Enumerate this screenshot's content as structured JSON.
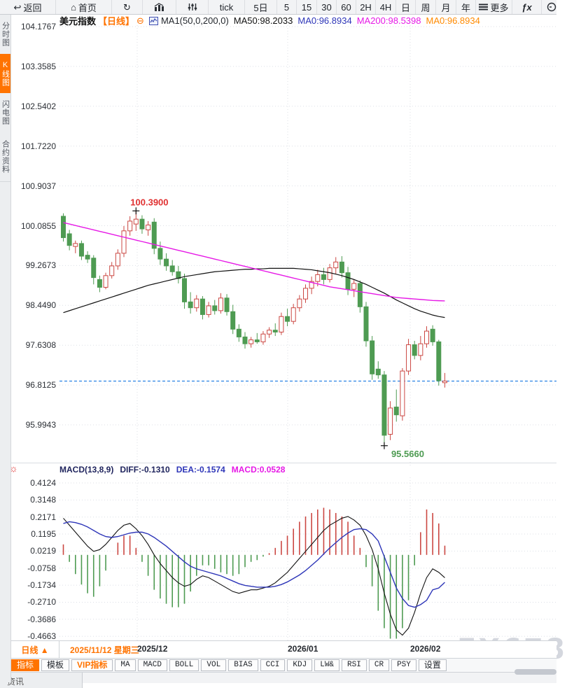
{
  "top_toolbar": {
    "items": [
      {
        "id": "back",
        "label": "返回",
        "icon": "back-arrow-icon",
        "glyph": "↩",
        "w": 80
      },
      {
        "id": "home",
        "label": "首页",
        "icon": "home-icon",
        "glyph": "⌂",
        "w": 80
      },
      {
        "id": "refresh",
        "label": "",
        "icon": "refresh-icon",
        "glyph": "↻",
        "w": 44
      },
      {
        "id": "kline",
        "label": "",
        "icon": "kline-chart-icon",
        "glyph": "svg-kline",
        "w": 48
      },
      {
        "id": "indicator",
        "label": "",
        "icon": "sliders-icon",
        "glyph": "svg-sliders",
        "w": 46
      },
      {
        "id": "tick",
        "label": "tick",
        "w": 52
      },
      {
        "id": "5d",
        "label": "5日",
        "w": 46
      },
      {
        "id": "m5",
        "label": "5",
        "w": 28
      },
      {
        "id": "m15",
        "label": "15",
        "w": 29
      },
      {
        "id": "m30",
        "label": "30",
        "w": 28
      },
      {
        "id": "m60",
        "label": "60",
        "w": 28
      },
      {
        "id": "h2",
        "label": "2H",
        "w": 28
      },
      {
        "id": "h4",
        "label": "4H",
        "w": 29
      },
      {
        "id": "day",
        "label": "日",
        "w": 28
      },
      {
        "id": "week",
        "label": "周",
        "w": 29
      },
      {
        "id": "month",
        "label": "月",
        "w": 29
      },
      {
        "id": "year",
        "label": "年",
        "w": 28
      },
      {
        "id": "more",
        "label": "更多",
        "icon": "menu-icon",
        "glyph": "svg-menu",
        "w": 52
      },
      {
        "id": "fx",
        "label": "ƒx",
        "fx": true,
        "w": 42
      },
      {
        "id": "clock",
        "label": "",
        "icon": "clock-icon",
        "glyph": "svg-circle",
        "w": 24
      }
    ]
  },
  "sidebar": {
    "tabs": [
      {
        "label": "分时图",
        "active": false,
        "h": 56
      },
      {
        "label": "K线图",
        "active": true,
        "h": 56
      },
      {
        "label": "闪电图",
        "active": false,
        "h": 56
      },
      {
        "label": "合约资料",
        "active": false,
        "h": 70
      }
    ]
  },
  "chart_header": {
    "symbol": "美元指数",
    "period": "【日线】",
    "collapse_icon": "⊖",
    "ma_settings": "MA1(50,0,200,0)",
    "ma50": "MA50:98.2033",
    "ma0_blue": "MA0:96.8934",
    "ma200": "MA200:98.5398",
    "ma0_orange": "MA0:96.8934"
  },
  "macd_header": {
    "title": "MACD(13,8,9)",
    "diff": "DIFF:-0.1310",
    "dea": "DEA:-0.1574",
    "macd": "MACD:0.0528"
  },
  "x_axis": {
    "period_button": "日线 ▲",
    "crosshair_date": {
      "text": "2025/11/12 星期三",
      "x": 84
    },
    "labels": [
      {
        "text": "2025/12",
        "x": 180
      },
      {
        "text": "2026/01",
        "x": 395
      },
      {
        "text": "2026/02",
        "x": 570
      }
    ]
  },
  "bottom_toolbar": {
    "items": [
      {
        "label": "指标",
        "active": true
      },
      {
        "label": "模板"
      },
      {
        "label": "VIP指标",
        "vip": true
      },
      {
        "label": "MA",
        "mono": true
      },
      {
        "label": "MACD",
        "mono": true
      },
      {
        "label": "BOLL",
        "mono": true
      },
      {
        "label": "VOL",
        "mono": true
      },
      {
        "label": "BIAS",
        "mono": true
      },
      {
        "label": "CCI",
        "mono": true
      },
      {
        "label": "KDJ",
        "mono": true
      },
      {
        "label": "LW&",
        "mono": true
      },
      {
        "label": "RSI",
        "mono": true
      },
      {
        "label": "CR",
        "mono": true
      },
      {
        "label": "PSY",
        "mono": true
      },
      {
        "label": "设置"
      }
    ]
  },
  "partial_tab": "资讯",
  "watermark": "FX678",
  "colors": {
    "up_red": "#cb4742",
    "down_green": "#4e9b52",
    "ma50_black": "#111111",
    "ma200_magenta": "#e619e6",
    "dea_blue": "#2d35b8",
    "diff_black": "#111111",
    "price_line_blue": "#2a82e4",
    "grid": "#dcdfe6",
    "accent_orange": "#ff7300",
    "annotation_red": "#e03131",
    "annotation_green": "#4e9b52"
  },
  "chart_data": [
    {
      "type": "candlestick",
      "title": "美元指数 日线",
      "y_ticks": [
        "104.1767",
        "103.3585",
        "102.5402",
        "101.7220",
        "100.9037",
        "100.0855",
        "99.2673",
        "98.4490",
        "97.6308",
        "96.8125",
        "95.9943"
      ],
      "y_top_value": 104.1767,
      "y_tick_step": 0.81825,
      "price_line_value": 96.8934,
      "month_gridlines_x": [
        111,
        326,
        501
      ],
      "annotations": {
        "high": {
          "index": 12,
          "price": 100.39,
          "label": "100.3900"
        },
        "low": {
          "index": 53,
          "price": 95.566,
          "label": "95.5660"
        }
      },
      "candles": [
        [
          100.28,
          100.34,
          99.76,
          99.84
        ],
        [
          99.92,
          100.0,
          99.58,
          99.68
        ],
        [
          99.66,
          99.78,
          99.52,
          99.72
        ],
        [
          99.72,
          99.78,
          99.38,
          99.46
        ],
        [
          99.48,
          99.56,
          99.32,
          99.4
        ],
        [
          99.42,
          99.48,
          98.88,
          99.02
        ],
        [
          98.98,
          99.06,
          98.72,
          98.82
        ],
        [
          98.82,
          99.12,
          98.78,
          99.06
        ],
        [
          99.06,
          99.34,
          99.0,
          99.26
        ],
        [
          99.26,
          99.6,
          99.18,
          99.52
        ],
        [
          99.52,
          100.08,
          99.44,
          99.98
        ],
        [
          99.98,
          100.28,
          99.88,
          100.18
        ],
        [
          100.12,
          100.39,
          99.98,
          100.22
        ],
        [
          100.22,
          100.3,
          99.92,
          100.02
        ],
        [
          100.0,
          100.18,
          99.88,
          100.1
        ],
        [
          100.16,
          100.24,
          99.5,
          99.62
        ],
        [
          99.62,
          99.76,
          99.28,
          99.4
        ],
        [
          99.4,
          99.52,
          99.16,
          99.26
        ],
        [
          99.26,
          99.38,
          99.06,
          99.14
        ],
        [
          99.14,
          99.26,
          98.9,
          99.0
        ],
        [
          99.0,
          99.1,
          98.38,
          98.52
        ],
        [
          98.52,
          98.72,
          98.28,
          98.4
        ],
        [
          98.4,
          98.66,
          98.32,
          98.58
        ],
        [
          98.58,
          98.64,
          98.16,
          98.26
        ],
        [
          98.26,
          98.52,
          98.2,
          98.44
        ],
        [
          98.44,
          98.56,
          98.26,
          98.34
        ],
        [
          98.34,
          98.7,
          98.28,
          98.6
        ],
        [
          98.6,
          98.68,
          98.24,
          98.32
        ],
        [
          98.32,
          98.46,
          97.86,
          97.96
        ],
        [
          97.96,
          98.06,
          97.7,
          97.8
        ],
        [
          97.8,
          97.9,
          97.56,
          97.66
        ],
        [
          97.66,
          97.8,
          97.58,
          97.74
        ],
        [
          97.74,
          97.88,
          97.66,
          97.7
        ],
        [
          97.7,
          97.92,
          97.64,
          97.86
        ],
        [
          97.86,
          98.0,
          97.78,
          97.94
        ],
        [
          97.94,
          98.08,
          97.82,
          97.9
        ],
        [
          97.9,
          98.3,
          97.84,
          98.22
        ],
        [
          98.22,
          98.38,
          98.02,
          98.12
        ],
        [
          98.12,
          98.48,
          98.06,
          98.4
        ],
        [
          98.4,
          98.66,
          98.32,
          98.58
        ],
        [
          98.58,
          98.88,
          98.5,
          98.8
        ],
        [
          98.8,
          99.04,
          98.68,
          98.94
        ],
        [
          98.94,
          99.18,
          98.84,
          99.08
        ],
        [
          99.08,
          99.22,
          98.88,
          98.98
        ],
        [
          98.98,
          99.3,
          98.92,
          99.22
        ],
        [
          99.22,
          99.44,
          99.1,
          99.34
        ],
        [
          99.34,
          99.46,
          99.02,
          99.12
        ],
        [
          99.12,
          99.24,
          98.66,
          98.78
        ],
        [
          98.78,
          98.98,
          98.62,
          98.9
        ],
        [
          98.9,
          98.96,
          98.3,
          98.42
        ],
        [
          98.42,
          98.52,
          97.6,
          97.72
        ],
        [
          97.72,
          97.82,
          96.92,
          97.04
        ],
        [
          97.14,
          97.3,
          96.94,
          97.02
        ],
        [
          97.02,
          97.1,
          95.566,
          95.78
        ],
        [
          95.8,
          96.48,
          95.68,
          96.34
        ],
        [
          96.36,
          96.72,
          96.06,
          96.2
        ],
        [
          96.18,
          97.16,
          96.08,
          97.1
        ],
        [
          97.1,
          97.76,
          97.02,
          97.64
        ],
        [
          97.64,
          97.72,
          97.34,
          97.42
        ],
        [
          97.42,
          97.82,
          97.32,
          97.66
        ],
        [
          97.66,
          98.02,
          97.58,
          97.92
        ],
        [
          97.96,
          98.04,
          97.62,
          97.7
        ],
        [
          97.7,
          97.74,
          96.8,
          96.9
        ],
        [
          96.86,
          97.06,
          96.76,
          96.8934
        ]
      ],
      "ma50": [
        98.3,
        98.34,
        98.38,
        98.42,
        98.46,
        98.5,
        98.54,
        98.58,
        98.62,
        98.66,
        98.7,
        98.74,
        98.78,
        98.82,
        98.86,
        98.89,
        98.92,
        98.95,
        98.98,
        99.01,
        99.04,
        99.06,
        99.08,
        99.1,
        99.12,
        99.14,
        99.15,
        99.16,
        99.17,
        99.18,
        99.19,
        99.19,
        99.2,
        99.2,
        99.21,
        99.21,
        99.21,
        99.21,
        99.21,
        99.2,
        99.19,
        99.18,
        99.16,
        99.14,
        99.12,
        99.09,
        99.06,
        99.02,
        98.98,
        98.93,
        98.88,
        98.82,
        98.76,
        98.7,
        98.63,
        98.56,
        98.5,
        98.44,
        98.38,
        98.33,
        98.29,
        98.25,
        98.22,
        98.2
      ],
      "ma200": [
        100.15,
        100.12,
        100.09,
        100.06,
        100.03,
        100.0,
        99.97,
        99.94,
        99.91,
        99.88,
        99.85,
        99.82,
        99.79,
        99.76,
        99.73,
        99.7,
        99.67,
        99.64,
        99.61,
        99.58,
        99.55,
        99.52,
        99.49,
        99.46,
        99.43,
        99.4,
        99.37,
        99.34,
        99.31,
        99.28,
        99.25,
        99.22,
        99.19,
        99.16,
        99.13,
        99.1,
        99.07,
        99.04,
        99.01,
        98.98,
        98.95,
        98.92,
        98.89,
        98.86,
        98.83,
        98.81,
        98.79,
        98.77,
        98.75,
        98.73,
        98.71,
        98.69,
        98.67,
        98.65,
        98.63,
        98.61,
        98.6,
        98.59,
        98.58,
        98.57,
        98.56,
        98.55,
        98.545,
        98.54
      ]
    },
    {
      "type": "macd",
      "params": "MACD(13,8,9)",
      "y_ticks": [
        "0.4124",
        "0.3148",
        "0.2171",
        "0.1195",
        "0.0219",
        "-0.0758",
        "-0.1734",
        "-0.2710",
        "-0.3686",
        "-0.4663"
      ],
      "y_top_value": 0.4124,
      "y_tick_step": 0.09765,
      "month_gridlines_x": [
        111,
        326,
        501
      ],
      "diff": [
        0.21,
        0.17,
        0.13,
        0.09,
        0.05,
        0.02,
        0.03,
        0.06,
        0.1,
        0.14,
        0.17,
        0.18,
        0.15,
        0.11,
        0.06,
        0.0,
        -0.05,
        -0.09,
        -0.13,
        -0.16,
        -0.18,
        -0.17,
        -0.14,
        -0.12,
        -0.13,
        -0.15,
        -0.17,
        -0.19,
        -0.21,
        -0.22,
        -0.21,
        -0.2,
        -0.2,
        -0.19,
        -0.18,
        -0.16,
        -0.13,
        -0.1,
        -0.06,
        -0.02,
        0.02,
        0.06,
        0.1,
        0.14,
        0.17,
        0.19,
        0.21,
        0.22,
        0.2,
        0.17,
        0.11,
        0.03,
        -0.08,
        -0.22,
        -0.34,
        -0.43,
        -0.46,
        -0.42,
        -0.33,
        -0.22,
        -0.13,
        -0.08,
        -0.1,
        -0.131
      ],
      "dea": [
        0.18,
        0.19,
        0.185,
        0.175,
        0.16,
        0.14,
        0.12,
        0.105,
        0.1,
        0.105,
        0.115,
        0.125,
        0.13,
        0.13,
        0.12,
        0.1,
        0.075,
        0.05,
        0.02,
        -0.01,
        -0.04,
        -0.065,
        -0.08,
        -0.09,
        -0.1,
        -0.11,
        -0.12,
        -0.135,
        -0.15,
        -0.165,
        -0.175,
        -0.18,
        -0.185,
        -0.185,
        -0.185,
        -0.18,
        -0.17,
        -0.155,
        -0.135,
        -0.115,
        -0.09,
        -0.06,
        -0.03,
        0.005,
        0.04,
        0.07,
        0.1,
        0.125,
        0.145,
        0.15,
        0.145,
        0.12,
        0.08,
        -0.01,
        -0.1,
        -0.19,
        -0.25,
        -0.29,
        -0.3,
        -0.285,
        -0.26,
        -0.2,
        -0.19,
        -0.1574
      ]
    }
  ]
}
